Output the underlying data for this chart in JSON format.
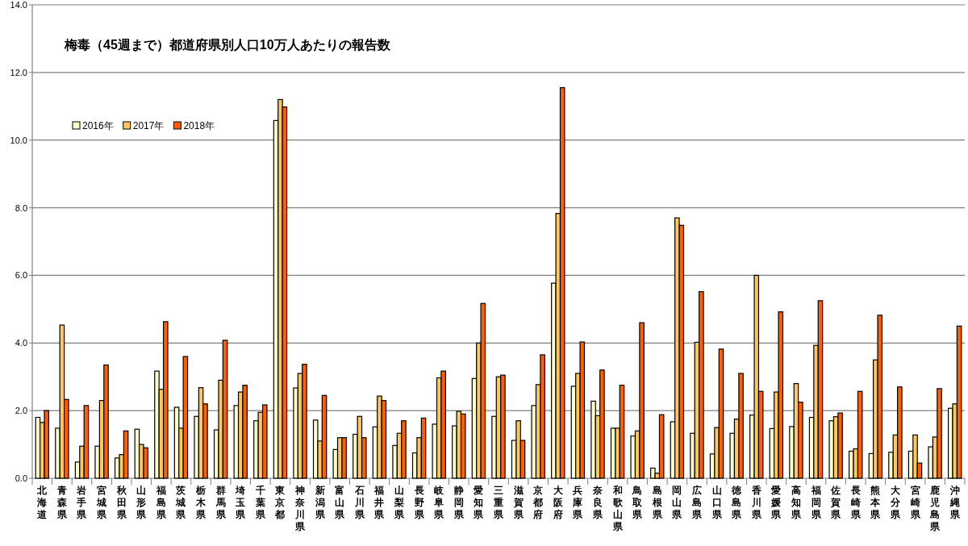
{
  "chart_data": {
    "type": "bar",
    "title": "梅毒（45週まで）都道府県別人口10万人あたりの報告数",
    "categories": [
      "北海道",
      "青森県",
      "岩手県",
      "宮城県",
      "秋田県",
      "山形県",
      "福島県",
      "茨城県",
      "栃木県",
      "群馬県",
      "埼玉県",
      "千葉県",
      "東京都",
      "神奈川県",
      "新潟県",
      "富山県",
      "石川県",
      "福井県",
      "山梨県",
      "長野県",
      "岐阜県",
      "静岡県",
      "愛知県",
      "三重県",
      "滋賀県",
      "京都府",
      "大阪府",
      "兵庫県",
      "奈良県",
      "和歌山県",
      "鳥取県",
      "島根県",
      "岡山県",
      "広島県",
      "山口県",
      "徳島県",
      "香川県",
      "愛媛県",
      "高知県",
      "福岡県",
      "佐賀県",
      "長崎県",
      "熊本県",
      "大分県",
      "宮崎県",
      "鹿児島県",
      "沖縄県"
    ],
    "series": [
      {
        "name": "2016年",
        "color": "#ffffcc",
        "values": [
          1.8,
          1.48,
          0.48,
          0.95,
          0.6,
          1.45,
          3.17,
          2.1,
          1.83,
          1.43,
          2.15,
          1.7,
          10.58,
          2.67,
          1.72,
          0.85,
          1.3,
          1.52,
          0.97,
          0.75,
          1.6,
          1.55,
          2.95,
          1.83,
          1.12,
          2.15,
          5.77,
          2.72,
          2.28,
          1.48,
          1.25,
          0.3,
          1.67,
          1.33,
          0.72,
          1.33,
          1.87,
          1.47,
          1.53,
          1.8,
          1.7,
          0.8,
          0.73,
          0.77,
          0.8,
          0.93,
          2.07
        ]
      },
      {
        "name": "2017年",
        "color": "#ffc65a",
        "values": [
          1.65,
          4.53,
          0.95,
          2.3,
          0.7,
          1.0,
          2.63,
          1.48,
          2.68,
          2.9,
          2.55,
          1.95,
          11.2,
          3.1,
          1.1,
          1.2,
          1.83,
          2.43,
          1.33,
          1.2,
          2.97,
          1.98,
          4.0,
          3.0,
          1.7,
          2.77,
          7.83,
          3.1,
          1.85,
          1.48,
          1.4,
          0.15,
          7.7,
          4.02,
          1.5,
          1.75,
          6.0,
          2.55,
          2.8,
          3.93,
          1.82,
          0.87,
          3.5,
          1.28,
          1.28,
          1.22,
          2.2
        ]
      },
      {
        "name": "2018年",
        "color": "#ff5f00",
        "values": [
          2.0,
          2.33,
          2.15,
          3.35,
          1.4,
          0.9,
          4.63,
          3.6,
          2.2,
          4.08,
          2.75,
          2.17,
          10.98,
          3.37,
          2.45,
          1.2,
          1.2,
          2.3,
          1.7,
          1.78,
          3.17,
          1.9,
          5.17,
          3.05,
          1.12,
          3.65,
          11.55,
          4.03,
          3.2,
          2.75,
          4.6,
          1.88,
          7.48,
          5.52,
          3.82,
          3.1,
          2.57,
          4.92,
          2.25,
          5.25,
          1.93,
          2.57,
          4.82,
          2.7,
          0.45,
          2.65,
          4.5
        ]
      }
    ],
    "ylim": [
      0,
      14
    ],
    "yticks": [
      {
        "value": 0,
        "label": "0.0"
      },
      {
        "value": 2,
        "label": "2.0"
      },
      {
        "value": 4,
        "label": "4.0"
      },
      {
        "value": 6,
        "label": "6.0"
      },
      {
        "value": 8,
        "label": "8.0"
      },
      {
        "value": 10,
        "label": "10.0"
      },
      {
        "value": 12,
        "label": "12.0"
      },
      {
        "value": 14,
        "label": "14.0"
      }
    ],
    "grid": "y",
    "legend": "top left"
  }
}
